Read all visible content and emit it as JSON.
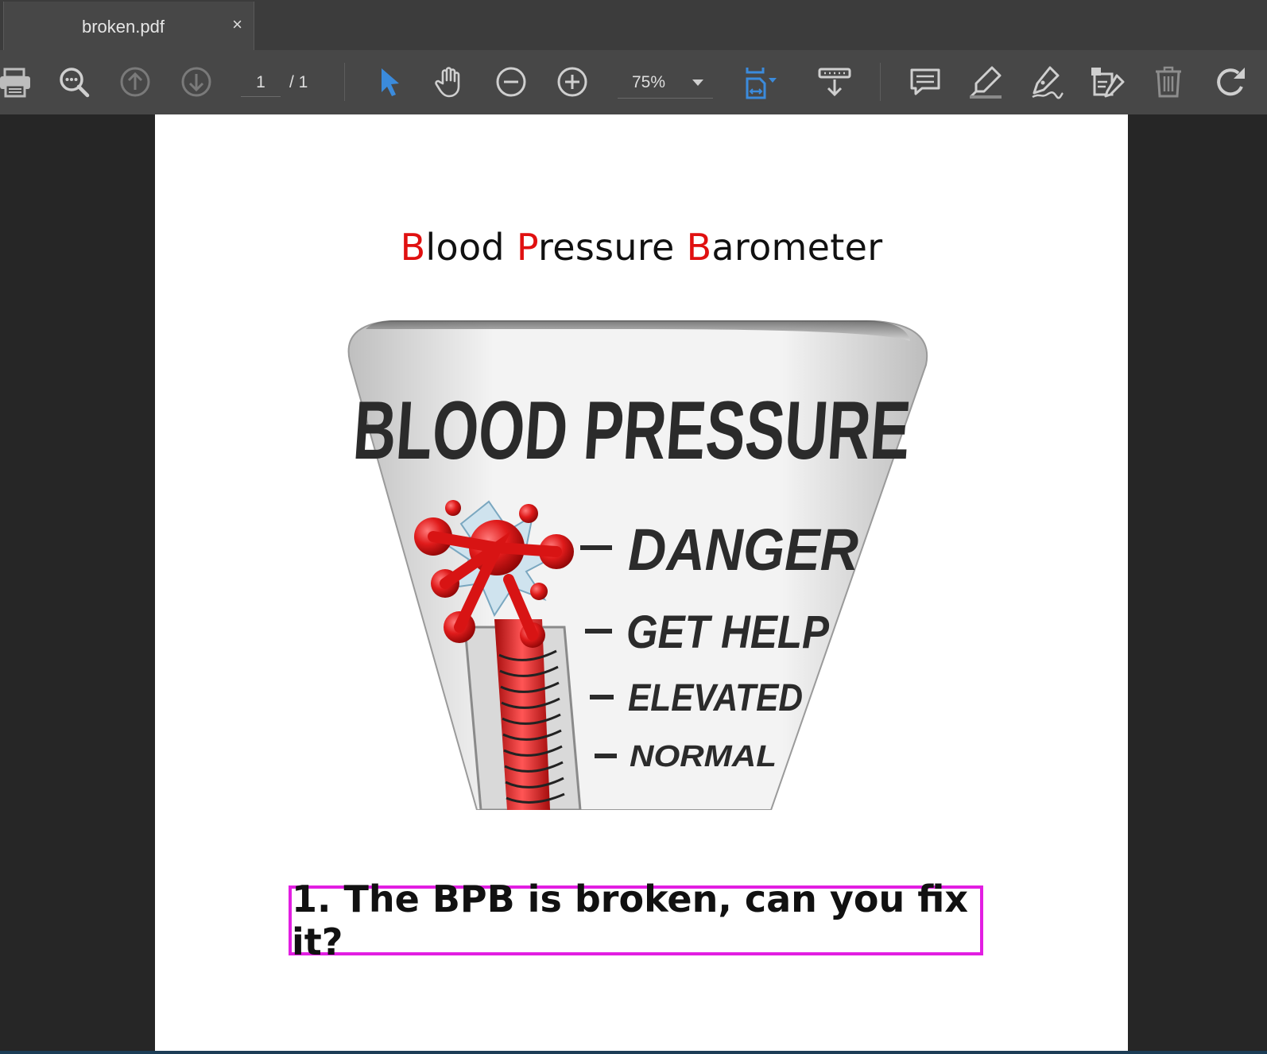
{
  "tab": {
    "title": "broken.pdf",
    "close": "×"
  },
  "toolbar": {
    "page_current": "1",
    "page_total": "/ 1",
    "zoom": "75%",
    "icons": [
      "print-icon",
      "find-icon",
      "prev-page-icon",
      "next-page-icon",
      "select-tool-icon",
      "hand-tool-icon",
      "zoom-out-icon",
      "zoom-in-icon",
      "fit-page-icon",
      "page-options-icon",
      "comment-icon",
      "highlight-icon",
      "sign-icon",
      "fill-form-icon",
      "delete-icon",
      "rotate-icon"
    ],
    "accent_color": "#3b8bdc"
  },
  "document": {
    "title_parts": [
      {
        "text": "B",
        "red": true
      },
      {
        "text": "lood ",
        "red": false
      },
      {
        "text": "P",
        "red": true
      },
      {
        "text": "ressure ",
        "red": false
      },
      {
        "text": "B",
        "red": true
      },
      {
        "text": "arometer",
        "red": false
      }
    ],
    "illustration": {
      "heading": "BLOOD PRESSURE",
      "levels": [
        "DANGER",
        "GET HELP",
        "ELEVATED",
        "NORMAL"
      ]
    },
    "callout": "1. The BPB is broken, can you fix it?",
    "callout_border_color": "#e21ee2"
  }
}
